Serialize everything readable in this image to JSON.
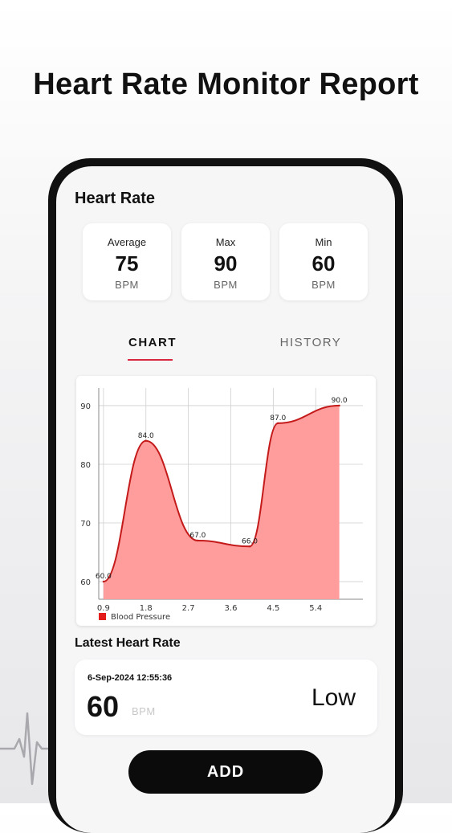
{
  "promo": {
    "title": "Heart Rate Monitor Report"
  },
  "heart_rate": {
    "title": "Heart Rate",
    "stats": [
      {
        "label": "Average",
        "value": "75",
        "unit": "BPM"
      },
      {
        "label": "Max",
        "value": "90",
        "unit": "BPM"
      },
      {
        "label": "Min",
        "value": "60",
        "unit": "BPM"
      }
    ]
  },
  "tabs": [
    {
      "label": "CHART",
      "active": true
    },
    {
      "label": "HISTORY",
      "active": false
    }
  ],
  "chart_data": {
    "type": "area",
    "x": [
      0.9,
      1.8,
      2.9,
      4.0,
      4.6,
      5.9
    ],
    "series": [
      {
        "name": "Blood Pressure",
        "values": [
          60.0,
          84.0,
          67.0,
          66.0,
          87.0,
          90.0
        ],
        "data_labels": [
          "60.0",
          "84.0",
          "67.0",
          "66.0",
          "87.0",
          "90.0"
        ]
      }
    ],
    "x_ticks": [
      "0.9",
      "1.8",
      "2.7",
      "3.6",
      "4.5",
      "5.4"
    ],
    "y_ticks": [
      "60",
      "70",
      "80",
      "90"
    ],
    "xlim": [
      0.8,
      6.4
    ],
    "ylim": [
      57.0,
      93.0
    ],
    "grid": true,
    "legend": "bottom-left",
    "colors": {
      "line": "#c41a1a",
      "fill": "#ff9d9d",
      "legend": "#e31c1c"
    }
  },
  "latest": {
    "title": "Latest Heart Rate",
    "timestamp": "6-Sep-2024 12:55:36",
    "value": "60",
    "unit": "BPM",
    "status": "Low"
  },
  "add_button": {
    "label": "ADD"
  },
  "icons": {
    "decoration": "ecg-line-icon"
  }
}
